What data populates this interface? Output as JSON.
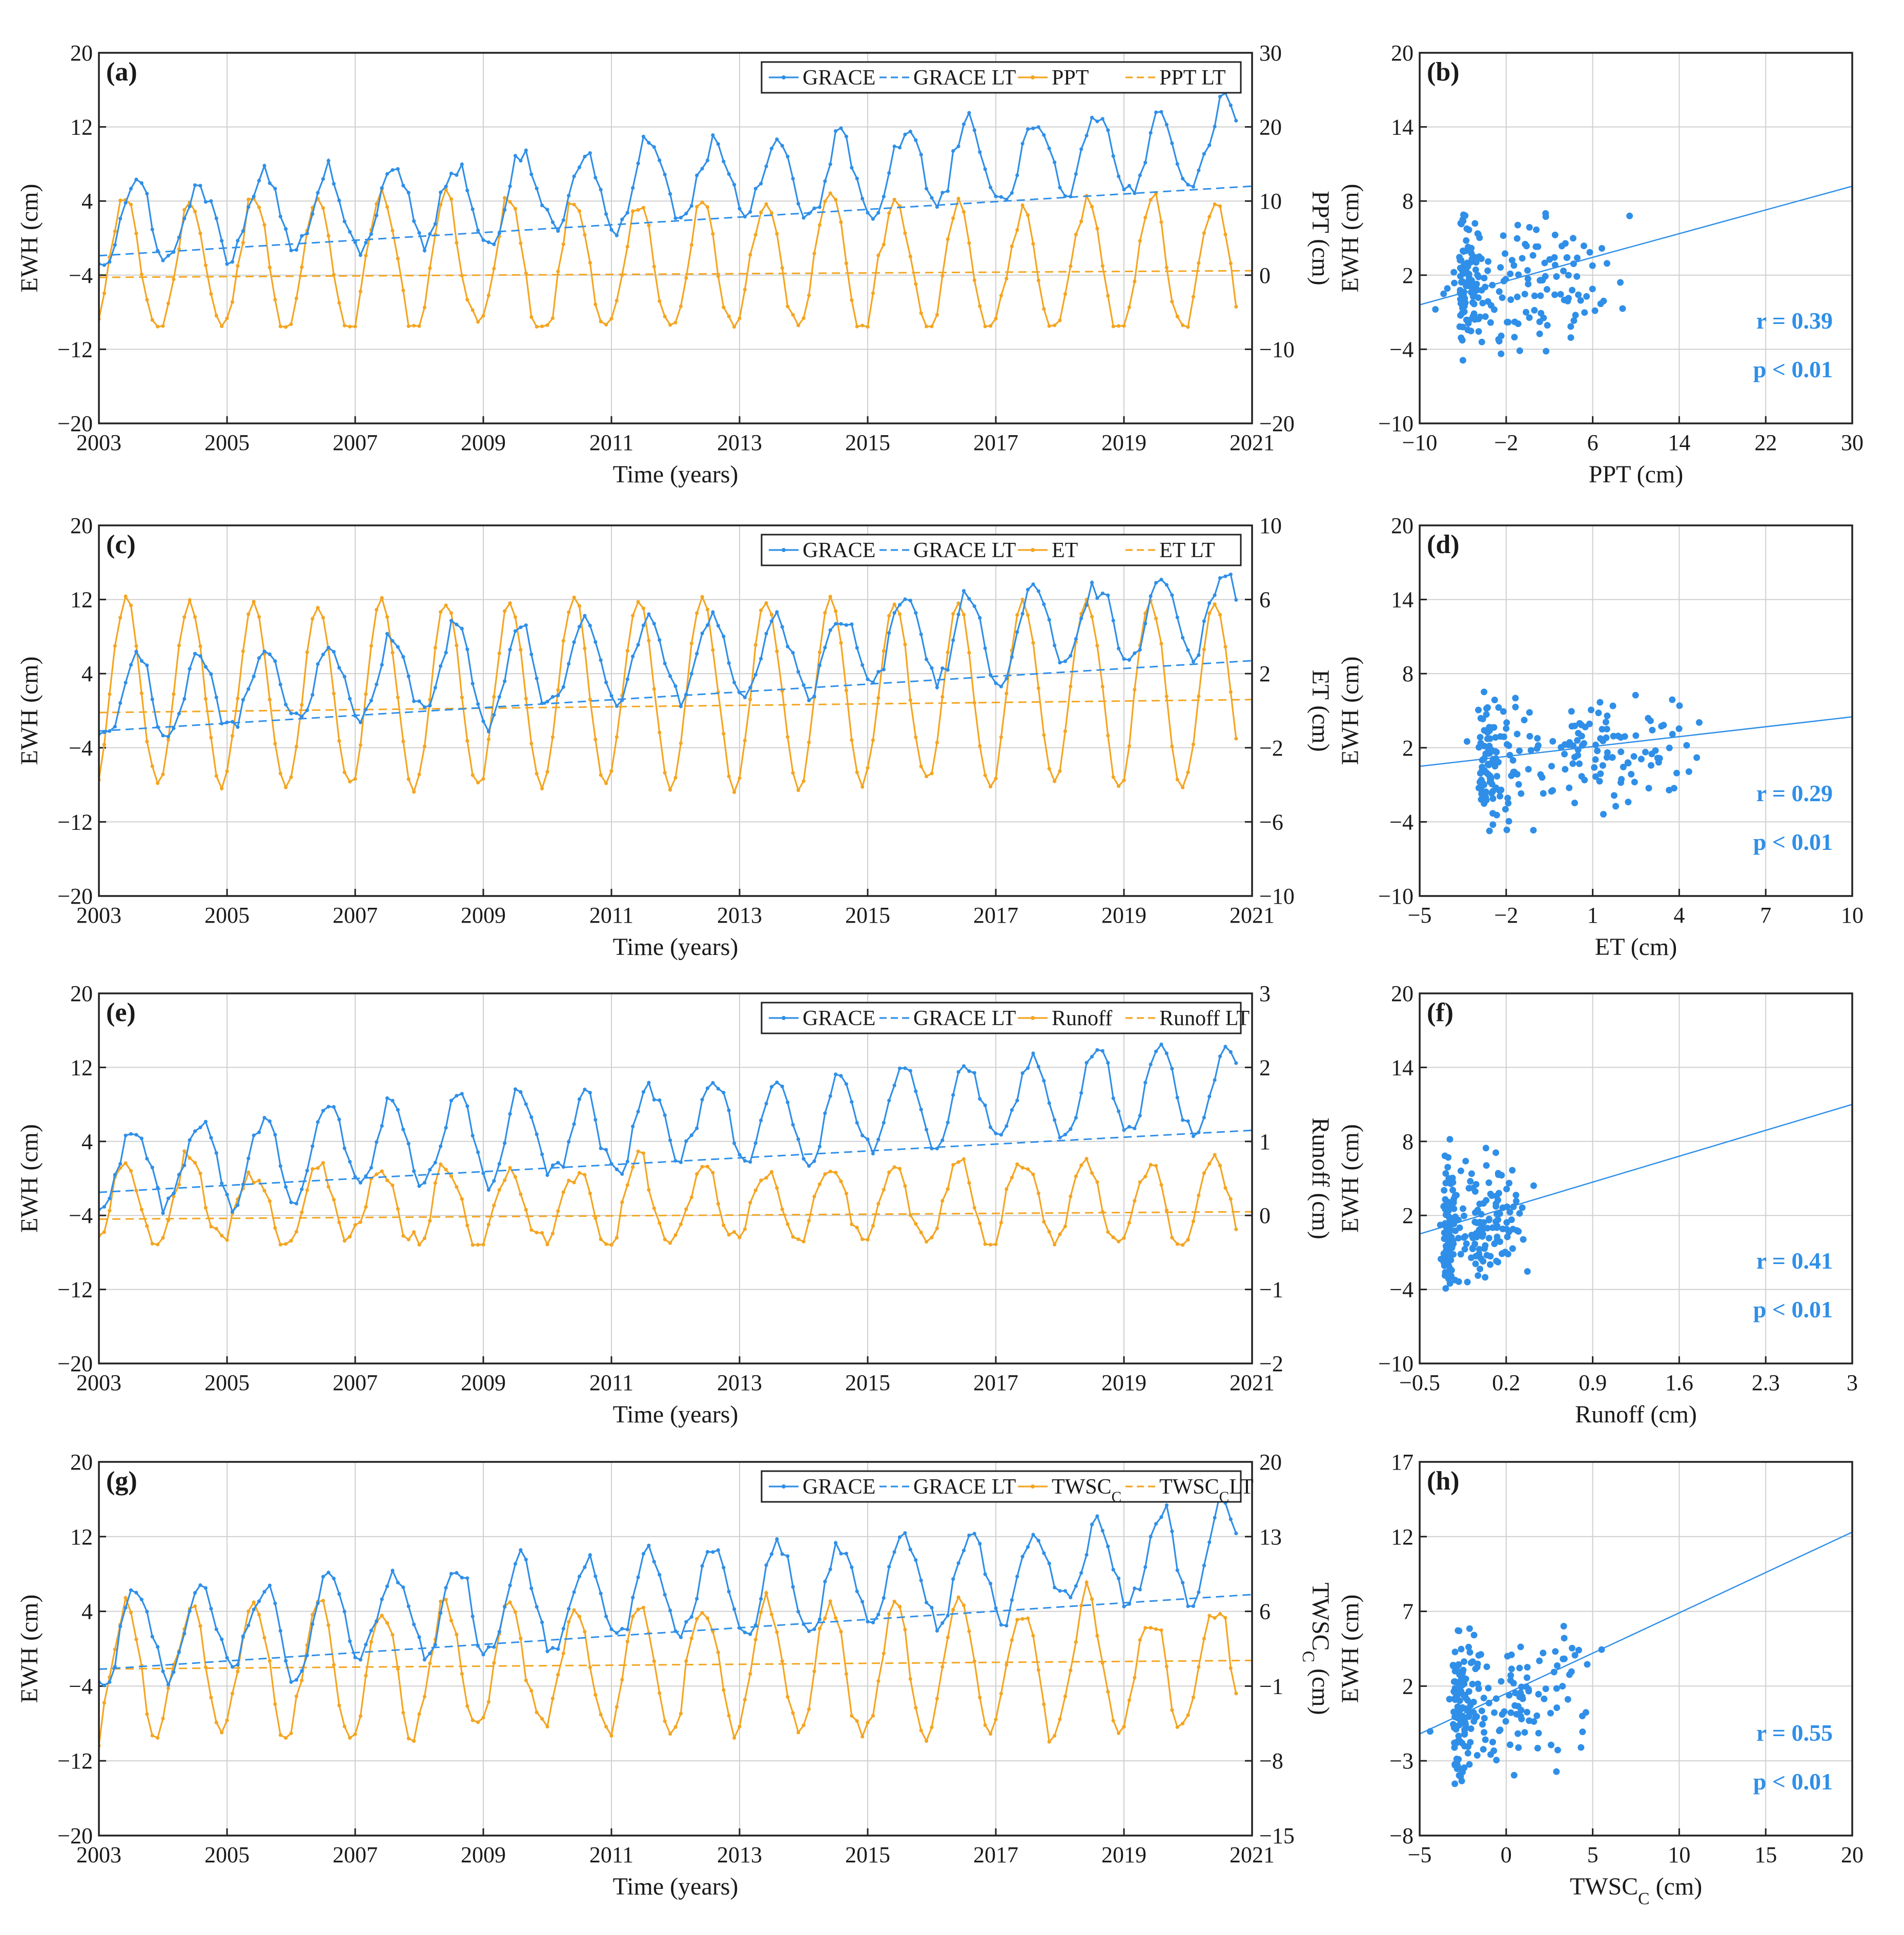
{
  "colors": {
    "grace": "#2f8fe8",
    "hydro": "#f4a521",
    "axis": "#222222",
    "grid": "#cfcfcf"
  },
  "chart_data": [
    {
      "type": "line",
      "panel_label": "(a)",
      "xlabel": "Time (years)",
      "ylabel_left": "EWH (cm)",
      "ylabel_right": "PPT (cm)",
      "xlim": [
        2003,
        2021
      ],
      "xticks": [
        "2003",
        "2005",
        "2007",
        "2009",
        "2011",
        "2013",
        "2015",
        "2017",
        "2019",
        "2021"
      ],
      "ylim_left": [
        -20,
        20
      ],
      "yticks_left": [
        "-20",
        "-12",
        "-4",
        "4",
        "12",
        "20"
      ],
      "ylim_right": [
        -20,
        30
      ],
      "yticks_right": [
        "-20",
        "-10",
        "0",
        "10",
        "20",
        "30"
      ],
      "legend": [
        "GRACE",
        "GRACE LT",
        "PPT",
        "PPT LT"
      ],
      "series": [
        {
          "name": "GRACE",
          "axis": "left",
          "style": "solid-dots",
          "seasonal": {
            "mean": 1.2,
            "amp": 4.5,
            "peak_month": 8,
            "trend": 0.5,
            "noise": 2.0
          }
        },
        {
          "name": "GRACE LT",
          "axis": "left",
          "style": "dashed",
          "endpoints": [
            [
              2003,
              -1.9
            ],
            [
              2021,
              5.6
            ]
          ]
        },
        {
          "name": "PPT",
          "axis": "right",
          "style": "solid-dots",
          "seasonal": {
            "mean": 1.0,
            "amp": 9.0,
            "peak_month": 6,
            "trend": 0.0,
            "noise": 2.5,
            "floor": -7
          }
        },
        {
          "name": "PPT LT",
          "axis": "right",
          "style": "dashed",
          "endpoints": [
            [
              2003,
              -0.3
            ],
            [
              2021,
              0.6
            ]
          ]
        }
      ]
    },
    {
      "type": "scatter",
      "panel_label": "(b)",
      "xlabel": "PPT (cm)",
      "ylabel": "EWH (cm)",
      "xlim": [
        -10,
        30
      ],
      "xticks": [
        "-10",
        "-2",
        "6",
        "14",
        "22",
        "30"
      ],
      "ylim": [
        -10,
        20
      ],
      "yticks": [
        "-10",
        "-4",
        "2",
        "8",
        "14",
        "20"
      ],
      "fit": [
        [
          -10,
          -0.4
        ],
        [
          30,
          9.2
        ]
      ],
      "stat_r": "r = 0.39",
      "stat_p": "p < 0.01",
      "points_summary": {
        "n": 216,
        "x_center": 0.5,
        "x_spread": 6.5,
        "y_center": 1.0,
        "y_spread": 4.2
      }
    },
    {
      "type": "line",
      "panel_label": "(c)",
      "xlabel": "Time (years)",
      "ylabel_left": "EWH (cm)",
      "ylabel_right": "ET (cm)",
      "xlim": [
        2003,
        2021
      ],
      "xticks": [
        "2003",
        "2005",
        "2007",
        "2009",
        "2011",
        "2013",
        "2015",
        "2017",
        "2019",
        "2021"
      ],
      "ylim_left": [
        -20,
        20
      ],
      "yticks_left": [
        "-20",
        "-12",
        "-4",
        "4",
        "12",
        "20"
      ],
      "ylim_right": [
        -10,
        10
      ],
      "yticks_right": [
        "-10",
        "-6",
        "-2",
        "2",
        "6",
        "10"
      ],
      "legend": [
        "GRACE",
        "GRACE LT",
        "ET",
        "ET LT"
      ],
      "series": [
        {
          "name": "GRACE",
          "axis": "left",
          "style": "solid-dots",
          "seasonal": {
            "mean": 1.2,
            "amp": 4.5,
            "peak_month": 8,
            "trend": 0.5,
            "noise": 2.0
          }
        },
        {
          "name": "GRACE LT",
          "axis": "left",
          "style": "dashed",
          "endpoints": [
            [
              2003,
              -2.2
            ],
            [
              2021,
              5.4
            ]
          ]
        },
        {
          "name": "ET",
          "axis": "right",
          "style": "solid-dots",
          "seasonal": {
            "mean": 0.9,
            "amp": 5.0,
            "peak_month": 6,
            "trend": 0.0,
            "noise": 0.6
          }
        },
        {
          "name": "ET LT",
          "axis": "right",
          "style": "dashed",
          "endpoints": [
            [
              2003,
              -0.1
            ],
            [
              2021,
              0.6
            ]
          ]
        }
      ]
    },
    {
      "type": "scatter",
      "panel_label": "(d)",
      "xlabel": "ET (cm)",
      "ylabel": "EWH (cm)",
      "xlim": [
        -5,
        10
      ],
      "xticks": [
        "-5",
        "-2",
        "1",
        "4",
        "7",
        "10"
      ],
      "ylim": [
        -10,
        20
      ],
      "yticks": [
        "-10",
        "-4",
        "2",
        "8",
        "14",
        "20"
      ],
      "fit": [
        [
          -5,
          0.5
        ],
        [
          10,
          4.5
        ]
      ],
      "stat_r": "r = 0.29",
      "stat_p": "p < 0.01",
      "points_summary": {
        "n": 216,
        "x_center": 0.8,
        "x_spread": 3.2,
        "y_center": 1.0,
        "y_spread": 4.2
      }
    },
    {
      "type": "line",
      "panel_label": "(e)",
      "xlabel": "Time (years)",
      "ylabel_left": "EWH (cm)",
      "ylabel_right": "Runoff (cm)",
      "xlim": [
        2003,
        2021
      ],
      "xticks": [
        "2003",
        "2005",
        "2007",
        "2009",
        "2011",
        "2013",
        "2015",
        "2017",
        "2019",
        "2021"
      ],
      "ylim_left": [
        -20,
        20
      ],
      "yticks_left": [
        "-20",
        "-12",
        "-4",
        "4",
        "12",
        "20"
      ],
      "ylim_right": [
        -2,
        3
      ],
      "yticks_right": [
        "-2",
        "-1",
        "0",
        "1",
        "2",
        "3"
      ],
      "legend": [
        "GRACE",
        "GRACE LT",
        "Runoff",
        "Runoff LT"
      ],
      "series": [
        {
          "name": "GRACE",
          "axis": "left",
          "style": "solid-dots",
          "seasonal": {
            "mean": 1.2,
            "amp": 4.5,
            "peak_month": 8,
            "trend": 0.5,
            "noise": 2.0
          }
        },
        {
          "name": "GRACE LT",
          "axis": "left",
          "style": "dashed",
          "endpoints": [
            [
              2003,
              -1.5
            ],
            [
              2021,
              5.2
            ]
          ]
        },
        {
          "name": "Runoff",
          "axis": "right",
          "style": "solid-dots",
          "seasonal": {
            "mean": 0.15,
            "amp": 0.55,
            "peak_month": 6,
            "trend": 0.0,
            "noise": 0.25,
            "floor": -0.4
          }
        },
        {
          "name": "Runoff LT",
          "axis": "right",
          "style": "dashed",
          "endpoints": [
            [
              2003,
              -0.05
            ],
            [
              2021,
              0.05
            ]
          ]
        }
      ]
    },
    {
      "type": "scatter",
      "panel_label": "(f)",
      "xlabel": "Runoff (cm)",
      "ylabel": "EWH (cm)",
      "xlim": [
        -0.5,
        3
      ],
      "xticks": [
        "-0.5",
        "0.2",
        "0.9",
        "1.6",
        "2.3",
        "3"
      ],
      "ylim": [
        -10,
        20
      ],
      "yticks": [
        "-10",
        "-4",
        "2",
        "8",
        "14",
        "20"
      ],
      "fit": [
        [
          -0.5,
          0.5
        ],
        [
          3,
          11.0
        ]
      ],
      "stat_r": "r = 0.41",
      "stat_p": "p < 0.01",
      "points_summary": {
        "n": 216,
        "x_center": 0.05,
        "x_spread": 0.3,
        "y_center": 1.0,
        "y_spread": 4.2
      }
    },
    {
      "type": "line",
      "panel_label": "(g)",
      "xlabel": "Time (years)",
      "ylabel_left": "EWH (cm)",
      "ylabel_right": "TWSCC (cm)",
      "xlim": [
        2003,
        2021
      ],
      "xticks": [
        "2003",
        "2005",
        "2007",
        "2009",
        "2011",
        "2013",
        "2015",
        "2017",
        "2019",
        "2021"
      ],
      "ylim_left": [
        -20,
        20
      ],
      "yticks_left": [
        "-20",
        "-12",
        "-4",
        "4",
        "12",
        "20"
      ],
      "ylim_right": [
        -15,
        20
      ],
      "yticks_right": [
        "-15",
        "-8",
        "-1",
        "6",
        "13",
        "20"
      ],
      "legend": [
        "GRACE",
        "GRACE LT",
        "TWSCC",
        "TWSCCLT"
      ],
      "series": [
        {
          "name": "GRACE",
          "axis": "left",
          "style": "solid-dots",
          "seasonal": {
            "mean": 1.2,
            "amp": 4.5,
            "peak_month": 8,
            "trend": 0.5,
            "noise": 2.0
          }
        },
        {
          "name": "GRACE LT",
          "axis": "left",
          "style": "dashed",
          "endpoints": [
            [
              2003,
              -2.2
            ],
            [
              2021,
              5.8
            ]
          ]
        },
        {
          "name": "TWSCC",
          "axis": "right",
          "style": "solid-dots",
          "seasonal": {
            "mean": 0.5,
            "amp": 6.0,
            "peak_month": 6,
            "trend": 0.0,
            "noise": 1.8
          }
        },
        {
          "name": "TWSCC LT",
          "axis": "right",
          "style": "dashed",
          "endpoints": [
            [
              2003,
              0.6
            ],
            [
              2021,
              1.4
            ]
          ]
        }
      ]
    },
    {
      "type": "scatter",
      "panel_label": "(h)",
      "xlabel": "TWSCC  (cm)",
      "ylabel": "EWH (cm)",
      "xlim": [
        -5,
        20
      ],
      "xticks": [
        "-5",
        "0",
        "5",
        "10",
        "15",
        "20"
      ],
      "ylim": [
        -8,
        17
      ],
      "yticks": [
        "-8",
        "-3",
        "2",
        "7",
        "12",
        "17"
      ],
      "fit": [
        [
          -5,
          -1.2
        ],
        [
          20,
          12.3
        ]
      ],
      "stat_r": "r = 0.55",
      "stat_p": "p < 0.01",
      "points_summary": {
        "n": 216,
        "x_center": 0.5,
        "x_spread": 4.0,
        "y_center": 1.0,
        "y_spread": 4.2
      }
    }
  ]
}
